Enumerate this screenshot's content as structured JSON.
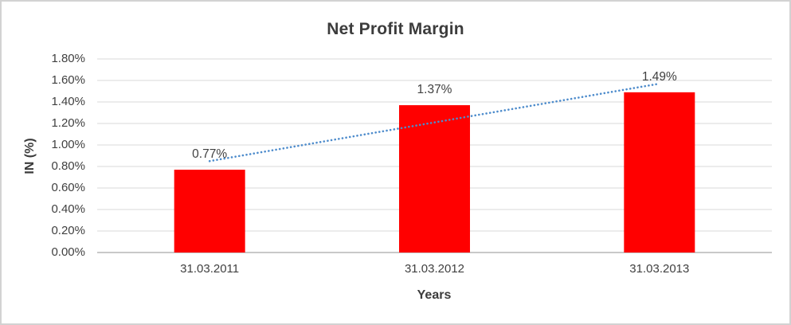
{
  "window": {
    "background": "#ffffff",
    "border_color": "#d2d2d2"
  },
  "chart_data": {
    "type": "bar",
    "title": "Net Profit Margin",
    "xlabel": "Years",
    "ylabel": "IN (%)",
    "categories": [
      "31.03.2011",
      "31.03.2012",
      "31.03.2013"
    ],
    "values": [
      0.77,
      1.37,
      1.49
    ],
    "data_labels": [
      "0.77%",
      "1.37%",
      "1.49%"
    ],
    "ylim": [
      0,
      1.8
    ],
    "ytick_step": 0.2,
    "yticks": [
      "0.00%",
      "0.20%",
      "0.40%",
      "0.60%",
      "0.80%",
      "1.00%",
      "1.20%",
      "1.40%",
      "1.60%",
      "1.80%"
    ],
    "grid": true,
    "legend": "none",
    "bar_color": "#ff0000",
    "gridline_color": "#d9d9d9",
    "axis_line_color": "#a8a8a8",
    "text_color": "#404040",
    "title_color": "#3c3c3c",
    "trendline": {
      "type": "linear",
      "style": "dotted",
      "color": "#4e8ccc",
      "fit_of": "values"
    }
  }
}
